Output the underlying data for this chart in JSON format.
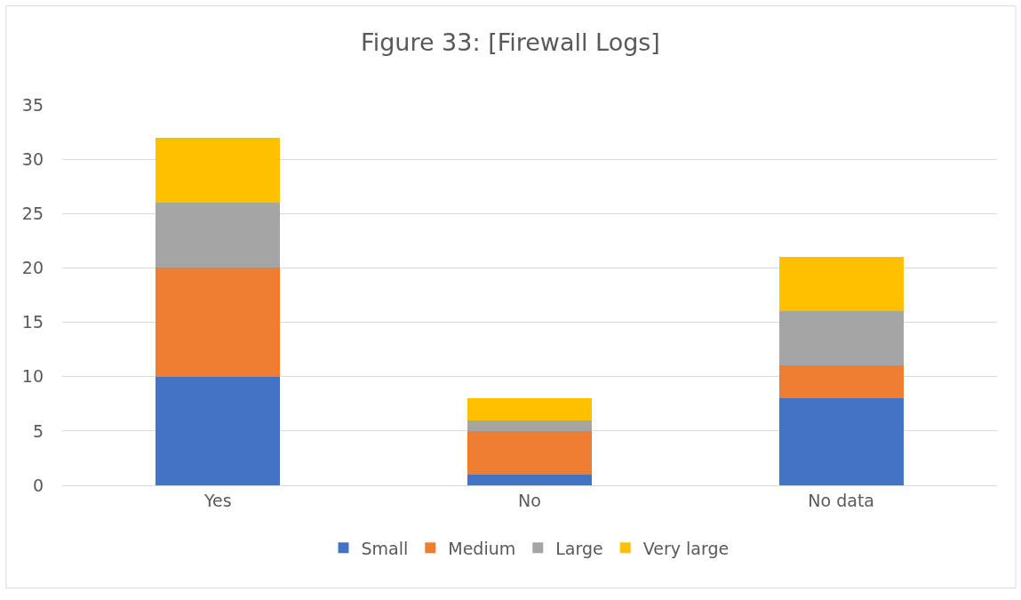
{
  "chart_data": {
    "type": "bar",
    "title": "Figure 33: [Firewall Logs]",
    "stacked": true,
    "categories": [
      "Yes",
      "No",
      "No data"
    ],
    "series": [
      {
        "name": "Small",
        "color": "#4472c4",
        "values": [
          10,
          1,
          8
        ]
      },
      {
        "name": "Medium",
        "color": "#ed7d31",
        "values": [
          10,
          4,
          3
        ]
      },
      {
        "name": "Large",
        "color": "#a5a5a5",
        "values": [
          6,
          1,
          5
        ]
      },
      {
        "name": "Very large",
        "color": "#ffc000",
        "values": [
          6,
          2,
          5
        ]
      }
    ],
    "ylim": [
      0,
      35
    ],
    "yticks": [
      0,
      5,
      10,
      15,
      20,
      25,
      30,
      35
    ],
    "grid": "y",
    "legend": "bottom"
  }
}
